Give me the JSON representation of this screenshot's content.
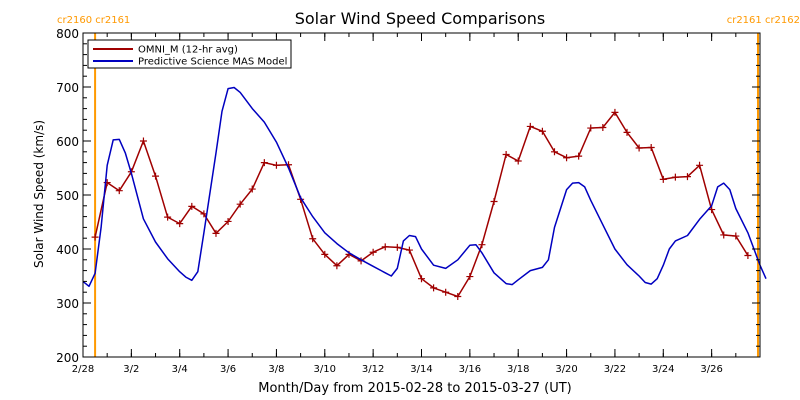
{
  "chart_data": {
    "type": "line",
    "title": "Solar Wind Speed Comparisons",
    "xlabel": "Month/Day from 2015-02-28 to 2015-03-27 (UT)",
    "ylabel": "Solar Wind Speed (km/s)",
    "x_start": "2015-02-28",
    "x_end": "2015-03-27",
    "xlim": [
      "2015-02-28",
      "2015-03-28"
    ],
    "ylim": [
      200,
      800
    ],
    "yticks": [
      200,
      300,
      400,
      500,
      600,
      700,
      800
    ],
    "xticks": [
      {
        "date": "2015-02-28",
        "label": "2/28"
      },
      {
        "date": "2015-03-02",
        "label": "3/2"
      },
      {
        "date": "2015-03-04",
        "label": "3/4"
      },
      {
        "date": "2015-03-06",
        "label": "3/6"
      },
      {
        "date": "2015-03-08",
        "label": "3/8"
      },
      {
        "date": "2015-03-10",
        "label": "3/10"
      },
      {
        "date": "2015-03-12",
        "label": "3/12"
      },
      {
        "date": "2015-03-14",
        "label": "3/14"
      },
      {
        "date": "2015-03-16",
        "label": "3/16"
      },
      {
        "date": "2015-03-18",
        "label": "3/18"
      },
      {
        "date": "2015-03-20",
        "label": "3/20"
      },
      {
        "date": "2015-03-22",
        "label": "3/22"
      },
      {
        "date": "2015-03-24",
        "label": "3/24"
      },
      {
        "date": "2015-03-26",
        "label": "3/26"
      }
    ],
    "rotation_markers": [
      {
        "date": "2015-02-28 12:00",
        "labels": [
          "cr2160",
          "cr2161"
        ],
        "align": "left",
        "color": "#ff9900"
      },
      {
        "date": "2015-03-27 22:00",
        "labels": [
          "cr2161",
          "cr2162"
        ],
        "align": "right",
        "color": "#ff9900"
      }
    ],
    "legend": {
      "placement": "top-left",
      "entries": [
        {
          "name": "OMNI_M (12-hr avg)",
          "color": "#a00000"
        },
        {
          "name": "Predictive Science MAS Model",
          "color": "#0000c0"
        }
      ]
    },
    "series": [
      {
        "name": "OMNI_M (12-hr avg)",
        "color": "#a00000",
        "marker": "plus",
        "points": [
          [
            "2015-02-28 12:00",
            422
          ],
          [
            "2015-03-01 00:00",
            523
          ],
          [
            "2015-03-01 12:00",
            508
          ],
          [
            "2015-03-02 00:00",
            543
          ],
          [
            "2015-03-02 12:00",
            600
          ],
          [
            "2015-03-03 00:00",
            535
          ],
          [
            "2015-03-03 12:00",
            459
          ],
          [
            "2015-03-04 00:00",
            447
          ],
          [
            "2015-03-04 12:00",
            479
          ],
          [
            "2015-03-05 00:00",
            465
          ],
          [
            "2015-03-05 12:00",
            429
          ],
          [
            "2015-03-06 00:00",
            451
          ],
          [
            "2015-03-06 12:00",
            483
          ],
          [
            "2015-03-07 00:00",
            511
          ],
          [
            "2015-03-07 12:00",
            560
          ],
          [
            "2015-03-08 00:00",
            555
          ],
          [
            "2015-03-08 12:00",
            556
          ],
          [
            "2015-03-09 00:00",
            492
          ],
          [
            "2015-03-09 12:00",
            419
          ],
          [
            "2015-03-10 00:00",
            390
          ],
          [
            "2015-03-10 12:00",
            369
          ],
          [
            "2015-03-11 00:00",
            390
          ],
          [
            "2015-03-11 12:00",
            378
          ],
          [
            "2015-03-12 00:00",
            394
          ],
          [
            "2015-03-12 12:00",
            404
          ],
          [
            "2015-03-13 00:00",
            403
          ],
          [
            "2015-03-13 12:00",
            398
          ],
          [
            "2015-03-14 00:00",
            345
          ],
          [
            "2015-03-14 12:00",
            328
          ],
          [
            "2015-03-15 00:00",
            320
          ],
          [
            "2015-03-15 12:00",
            312
          ],
          [
            "2015-03-16 00:00",
            349
          ],
          [
            "2015-03-16 12:00",
            408
          ],
          [
            "2015-03-17 00:00",
            488
          ],
          [
            "2015-03-17 12:00",
            575
          ],
          [
            "2015-03-18 00:00",
            563
          ],
          [
            "2015-03-18 12:00",
            627
          ],
          [
            "2015-03-19 00:00",
            618
          ],
          [
            "2015-03-19 12:00",
            580
          ],
          [
            "2015-03-20 00:00",
            569
          ],
          [
            "2015-03-20 12:00",
            572
          ],
          [
            "2015-03-21 00:00",
            624
          ],
          [
            "2015-03-21 12:00",
            625
          ],
          [
            "2015-03-22 00:00",
            653
          ],
          [
            "2015-03-22 12:00",
            616
          ],
          [
            "2015-03-23 00:00",
            587
          ],
          [
            "2015-03-23 12:00",
            588
          ],
          [
            "2015-03-24 00:00",
            529
          ],
          [
            "2015-03-24 12:00",
            533
          ],
          [
            "2015-03-25 00:00",
            534
          ],
          [
            "2015-03-25 12:00",
            555
          ],
          [
            "2015-03-26 00:00",
            473
          ],
          [
            "2015-03-26 12:00",
            426
          ],
          [
            "2015-03-27 00:00",
            424
          ],
          [
            "2015-03-27 12:00",
            388
          ]
        ]
      },
      {
        "name": "Predictive Science MAS Model",
        "color": "#0000c0",
        "marker": "none",
        "points": [
          [
            "2015-02-28 00:00",
            340
          ],
          [
            "2015-02-28 06:00",
            331
          ],
          [
            "2015-02-28 12:00",
            355
          ],
          [
            "2015-02-28 18:00",
            440
          ],
          [
            "2015-03-01 00:00",
            555
          ],
          [
            "2015-03-01 06:00",
            602
          ],
          [
            "2015-03-01 12:00",
            603
          ],
          [
            "2015-03-01 18:00",
            578
          ],
          [
            "2015-03-02 00:00",
            540
          ],
          [
            "2015-03-02 12:00",
            456
          ],
          [
            "2015-03-03 00:00",
            413
          ],
          [
            "2015-03-03 12:00",
            382
          ],
          [
            "2015-03-04 00:00",
            358
          ],
          [
            "2015-03-04 06:00",
            348
          ],
          [
            "2015-03-04 12:00",
            342
          ],
          [
            "2015-03-04 18:00",
            358
          ],
          [
            "2015-03-05 00:00",
            430
          ],
          [
            "2015-03-05 12:00",
            578
          ],
          [
            "2015-03-05 18:00",
            655
          ],
          [
            "2015-03-06 00:00",
            697
          ],
          [
            "2015-03-06 06:00",
            699
          ],
          [
            "2015-03-06 12:00",
            690
          ],
          [
            "2015-03-07 00:00",
            660
          ],
          [
            "2015-03-07 12:00",
            635
          ],
          [
            "2015-03-08 00:00",
            598
          ],
          [
            "2015-03-08 12:00",
            550
          ],
          [
            "2015-03-09 00:00",
            495
          ],
          [
            "2015-03-09 12:00",
            460
          ],
          [
            "2015-03-10 00:00",
            430
          ],
          [
            "2015-03-10 12:00",
            410
          ],
          [
            "2015-03-11 00:00",
            393
          ],
          [
            "2015-03-11 12:00",
            380
          ],
          [
            "2015-03-12 00:00",
            368
          ],
          [
            "2015-03-12 12:00",
            356
          ],
          [
            "2015-03-12 18:00",
            350
          ],
          [
            "2015-03-13 00:00",
            364
          ],
          [
            "2015-03-13 06:00",
            415
          ],
          [
            "2015-03-13 12:00",
            425
          ],
          [
            "2015-03-13 18:00",
            423
          ],
          [
            "2015-03-14 00:00",
            400
          ],
          [
            "2015-03-14 12:00",
            370
          ],
          [
            "2015-03-15 00:00",
            364
          ],
          [
            "2015-03-15 12:00",
            380
          ],
          [
            "2015-03-16 00:00",
            407
          ],
          [
            "2015-03-16 06:00",
            408
          ],
          [
            "2015-03-16 12:00",
            393
          ],
          [
            "2015-03-17 00:00",
            356
          ],
          [
            "2015-03-17 12:00",
            336
          ],
          [
            "2015-03-17 18:00",
            334
          ],
          [
            "2015-03-18 00:00",
            343
          ],
          [
            "2015-03-18 12:00",
            360
          ],
          [
            "2015-03-19 00:00",
            366
          ],
          [
            "2015-03-19 06:00",
            380
          ],
          [
            "2015-03-19 12:00",
            440
          ],
          [
            "2015-03-20 00:00",
            510
          ],
          [
            "2015-03-20 06:00",
            522
          ],
          [
            "2015-03-20 12:00",
            523
          ],
          [
            "2015-03-20 18:00",
            515
          ],
          [
            "2015-03-21 00:00",
            490
          ],
          [
            "2015-03-21 12:00",
            445
          ],
          [
            "2015-03-22 00:00",
            400
          ],
          [
            "2015-03-22 12:00",
            371
          ],
          [
            "2015-03-23 00:00",
            350
          ],
          [
            "2015-03-23 06:00",
            338
          ],
          [
            "2015-03-23 12:00",
            335
          ],
          [
            "2015-03-23 18:00",
            345
          ],
          [
            "2015-03-24 00:00",
            370
          ],
          [
            "2015-03-24 06:00",
            400
          ],
          [
            "2015-03-24 12:00",
            415
          ],
          [
            "2015-03-25 00:00",
            425
          ],
          [
            "2015-03-25 12:00",
            455
          ],
          [
            "2015-03-26 00:00",
            480
          ],
          [
            "2015-03-26 06:00",
            515
          ],
          [
            "2015-03-26 12:00",
            522
          ],
          [
            "2015-03-26 18:00",
            510
          ],
          [
            "2015-03-27 00:00",
            475
          ],
          [
            "2015-03-27 12:00",
            430
          ],
          [
            "2015-03-28 00:00",
            370
          ],
          [
            "2015-03-28 06:00",
            345
          ]
        ]
      }
    ]
  }
}
